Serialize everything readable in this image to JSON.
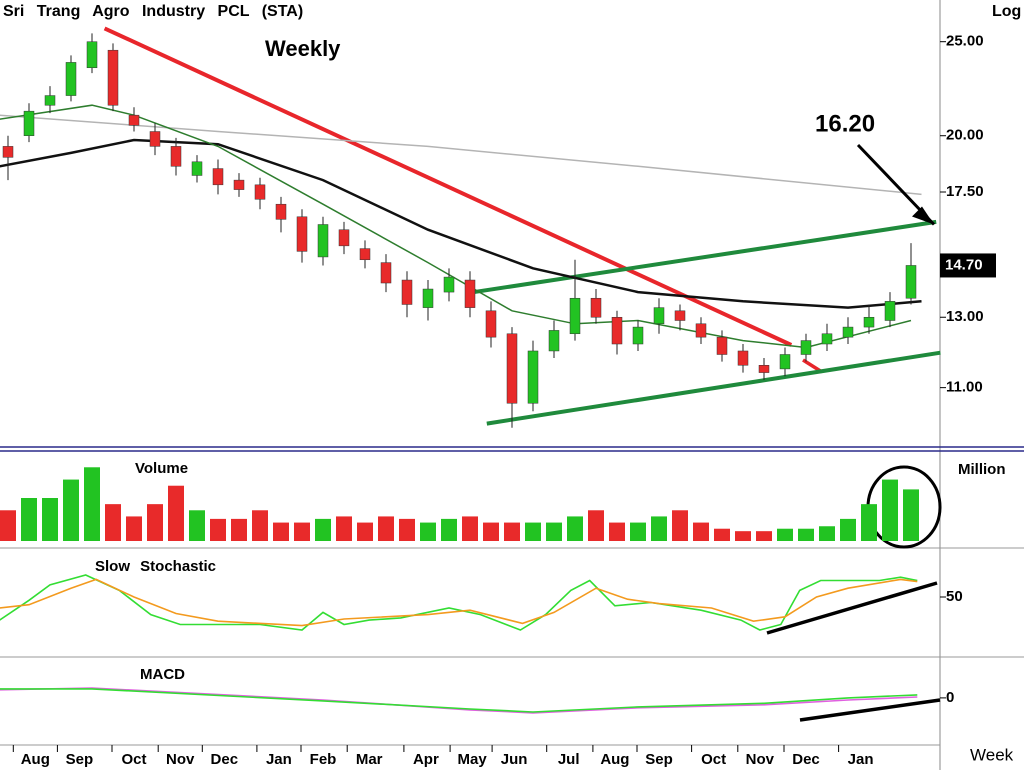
{
  "chart_data": [
    {
      "type": "candlestick",
      "title": "Sri Trang Agro Industry PCL (STA)",
      "subtitle": "Weekly",
      "axis_label": "Log",
      "scale": "log",
      "ylim": [
        9.6,
        27.6
      ],
      "yticks": [
        {
          "value": 11,
          "label": "11.00"
        },
        {
          "value": 13,
          "label": "13.00"
        },
        {
          "value": 17.5,
          "label": "17.50"
        },
        {
          "value": 20,
          "label": "20.00"
        },
        {
          "value": 25,
          "label": "25.00"
        }
      ],
      "up_color": "#22c322",
      "down_color": "#e82a2a",
      "open": [
        19.5,
        20.0,
        21.5,
        22.0,
        23.5,
        24.5,
        21.0,
        20.2,
        19.5,
        18.2,
        18.5,
        18.0,
        17.8,
        17.0,
        16.5,
        15.0,
        16.0,
        15.3,
        14.8,
        14.2,
        13.3,
        13.8,
        14.2,
        13.2,
        12.5,
        10.6,
        12.0,
        12.5,
        13.6,
        13.0,
        12.2,
        12.8,
        13.2,
        12.8,
        12.4,
        12.0,
        11.6,
        11.5,
        11.9,
        12.2,
        12.4,
        12.7,
        12.9,
        13.6
      ],
      "high": [
        20.0,
        21.6,
        22.5,
        24.2,
        25.5,
        24.9,
        21.4,
        20.6,
        19.9,
        19.1,
        18.9,
        18.3,
        18.1,
        17.3,
        16.8,
        16.5,
        16.3,
        15.6,
        15.1,
        14.5,
        14.2,
        14.6,
        14.5,
        13.5,
        12.7,
        12.3,
        12.9,
        14.9,
        13.9,
        13.2,
        12.9,
        13.6,
        13.4,
        13.0,
        12.6,
        12.2,
        11.8,
        12.1,
        12.5,
        12.8,
        13.0,
        13.4,
        13.8,
        15.5
      ],
      "low": [
        18.0,
        19.7,
        21.1,
        21.7,
        23.2,
        21.2,
        20.2,
        19.1,
        18.2,
        17.9,
        17.4,
        17.3,
        16.8,
        15.9,
        14.8,
        14.7,
        15.1,
        14.6,
        13.8,
        13.0,
        12.9,
        13.5,
        13.0,
        12.1,
        10.0,
        10.4,
        11.8,
        12.3,
        12.8,
        11.9,
        12.0,
        12.5,
        12.6,
        12.2,
        11.7,
        11.4,
        11.2,
        11.3,
        11.7,
        12.0,
        12.2,
        12.5,
        12.7,
        13.4
      ],
      "close": [
        19.0,
        21.2,
        22.0,
        23.8,
        25.0,
        21.5,
        20.5,
        19.5,
        18.6,
        18.8,
        17.8,
        17.6,
        17.2,
        16.4,
        15.2,
        16.2,
        15.4,
        14.9,
        14.1,
        13.4,
        13.9,
        14.3,
        13.3,
        12.4,
        10.6,
        12.0,
        12.6,
        13.6,
        13.0,
        12.2,
        12.7,
        13.3,
        12.9,
        12.4,
        11.9,
        11.6,
        11.4,
        11.9,
        12.3,
        12.5,
        12.7,
        13.0,
        13.5,
        14.7
      ],
      "overlays": [
        {
          "color": "#b4b4b4",
          "x": [
            -0.4,
            10,
            20,
            30,
            43.5
          ],
          "values": [
            21,
            20.2,
            19.5,
            18.6,
            17.4
          ]
        },
        {
          "color": "#111111",
          "x": [
            -0.4,
            3,
            6,
            10,
            15,
            20,
            25,
            30,
            35,
            40,
            43.5
          ],
          "values": [
            18.6,
            19.2,
            19.8,
            19.6,
            18,
            16,
            14.6,
            13.8,
            13.5,
            13.3,
            13.5
          ]
        },
        {
          "color": "#2e7d2e",
          "x": [
            -0.4,
            4,
            6,
            10,
            15,
            20,
            24,
            27,
            30,
            35,
            38,
            43
          ],
          "values": [
            20.8,
            21.5,
            21,
            19.5,
            17,
            14.8,
            13.2,
            12.8,
            12.9,
            12.3,
            12.1,
            12.9
          ]
        }
      ],
      "trendlines": [
        {
          "color": "#e8262b",
          "x": [
            4.6,
            37.3
          ],
          "values": [
            25.8,
            12.17
          ]
        },
        {
          "color": "#1f8a3c",
          "x": [
            22,
            44.2
          ],
          "values": [
            13.78,
            16.3
          ]
        },
        {
          "color": "#1f8a3c",
          "x": [
            22.8,
            44.4
          ],
          "values": [
            10.1,
            11.95
          ]
        }
      ],
      "last_price": {
        "value": 14.7,
        "label": "14.70"
      },
      "annotation": {
        "value": 16.2,
        "label": "16.20"
      }
    },
    {
      "type": "bar",
      "title": "Volume",
      "axis_label": "Million",
      "ylim": [
        0,
        7
      ],
      "values": [
        2.5,
        3.5,
        3.5,
        5,
        6,
        3,
        2,
        3,
        4.5,
        2.5,
        1.8,
        1.8,
        2.5,
        1.5,
        1.5,
        1.8,
        2,
        1.5,
        2,
        1.8,
        1.5,
        1.8,
        2,
        1.5,
        1.5,
        1.5,
        1.5,
        2,
        2.5,
        1.5,
        1.5,
        2,
        2.5,
        1.5,
        1,
        0.8,
        0.8,
        1,
        1,
        1.2,
        1.8,
        3,
        5,
        4.2
      ]
    },
    {
      "type": "line",
      "title": "Slow Stochastic",
      "ylim": [
        -2.7,
        92.7
      ],
      "yticks": [
        50
      ],
      "series": [
        {
          "color": "#33dd33",
          "x": [
            -0.4,
            1,
            2,
            3.7,
            5.3,
            6.8,
            8.2,
            12,
            14,
            15,
            16,
            17.2,
            18.7,
            21,
            22.5,
            24.4,
            25.6,
            26.8,
            27.7,
            28.9,
            30.6,
            33,
            34.9,
            35.8,
            36.8,
            37.7,
            38.7,
            41.5,
            42.5,
            43.3
          ],
          "values": [
            29,
            47,
            61,
            70,
            56,
            34,
            25,
            25,
            20,
            36,
            25,
            29,
            31,
            40,
            34,
            20,
            34,
            56,
            65,
            42,
            45,
            38,
            29,
            20,
            25,
            56,
            65,
            65,
            68,
            65
          ]
        },
        {
          "color": "#f39a1e",
          "x": [
            -0.4,
            1,
            3,
            4.2,
            6,
            8,
            10,
            14,
            16,
            20,
            22,
            24.5,
            26,
            28,
            29.5,
            31,
            33.5,
            35.5,
            37,
            38.5,
            40,
            42.5,
            43.3
          ],
          "values": [
            40,
            43,
            58,
            66,
            50,
            35,
            28,
            24,
            30,
            34,
            38,
            26,
            36,
            58,
            48,
            44,
            40,
            28,
            32,
            50,
            58,
            66,
            64
          ]
        }
      ]
    },
    {
      "type": "line",
      "title": "MACD",
      "ylim": [
        -1.57,
        1.33
      ],
      "yticks": [
        0
      ],
      "series": [
        {
          "color": "#e060e0",
          "x": [
            -0.4,
            4,
            15,
            22,
            25,
            30,
            36,
            40,
            43.3
          ],
          "values": [
            0.27,
            0.33,
            -0.07,
            -0.4,
            -0.5,
            -0.33,
            -0.23,
            -0.07,
            0.03
          ]
        },
        {
          "color": "#33dd33",
          "x": [
            -0.4,
            4,
            15,
            22,
            25,
            30,
            36,
            40,
            43.3
          ],
          "values": [
            0.3,
            0.3,
            -0.1,
            -0.37,
            -0.47,
            -0.3,
            -0.18,
            0.0,
            0.1
          ]
        }
      ],
      "x_axis_label": "Week",
      "xticks": [
        {
          "value": 1.3,
          "label": "Aug"
        },
        {
          "value": 3.4,
          "label": "Sep"
        },
        {
          "value": 6.0,
          "label": "Oct"
        },
        {
          "value": 8.2,
          "label": "Nov"
        },
        {
          "value": 10.3,
          "label": "Dec"
        },
        {
          "value": 12.9,
          "label": "Jan"
        },
        {
          "value": 15.0,
          "label": "Feb"
        },
        {
          "value": 17.2,
          "label": "Mar"
        },
        {
          "value": 19.9,
          "label": "Apr"
        },
        {
          "value": 22.1,
          "label": "May"
        },
        {
          "value": 24.1,
          "label": "Jun"
        },
        {
          "value": 26.7,
          "label": "Jul"
        },
        {
          "value": 28.9,
          "label": "Aug"
        },
        {
          "value": 31.0,
          "label": "Sep"
        },
        {
          "value": 33.6,
          "label": "Oct"
        },
        {
          "value": 35.8,
          "label": "Nov"
        },
        {
          "value": 38.0,
          "label": "Dec"
        },
        {
          "value": 40.6,
          "label": "Jan"
        }
      ]
    }
  ]
}
